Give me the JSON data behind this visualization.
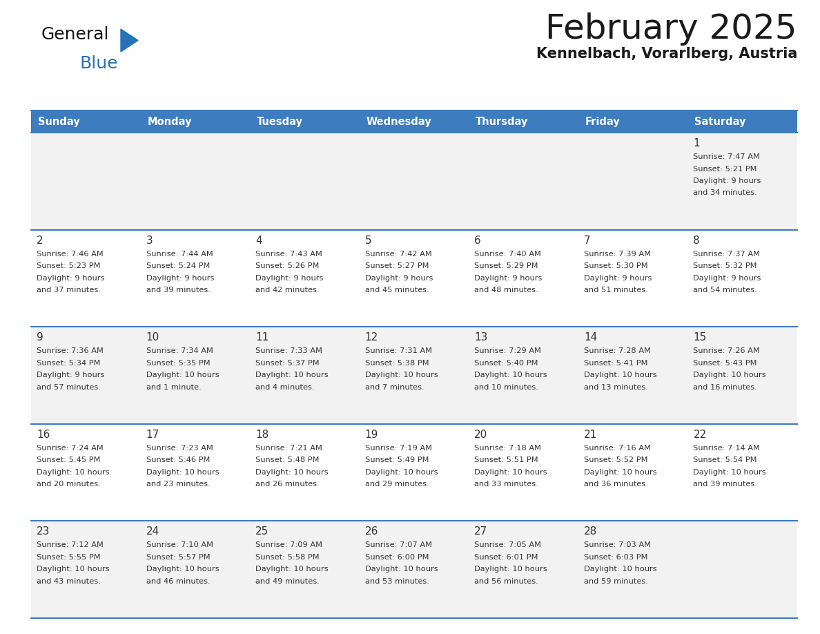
{
  "title": "February 2025",
  "subtitle": "Kennelbach, Vorarlberg, Austria",
  "days_of_week": [
    "Sunday",
    "Monday",
    "Tuesday",
    "Wednesday",
    "Thursday",
    "Friday",
    "Saturday"
  ],
  "header_bg": "#3d7cbf",
  "header_text": "#ffffff",
  "cell_bg_odd": "#f2f2f2",
  "cell_bg_even": "#ffffff",
  "border_color": "#3d7cbf",
  "text_color": "#333333",
  "line_color": "#3d7cbf",
  "calendar_data": [
    [
      null,
      null,
      null,
      null,
      null,
      null,
      {
        "day": "1",
        "sunrise": "7:47 AM",
        "sunset": "5:21 PM",
        "daylight": "9 hours",
        "daylight2": "and 34 minutes."
      }
    ],
    [
      {
        "day": "2",
        "sunrise": "7:46 AM",
        "sunset": "5:23 PM",
        "daylight": "9 hours",
        "daylight2": "and 37 minutes."
      },
      {
        "day": "3",
        "sunrise": "7:44 AM",
        "sunset": "5:24 PM",
        "daylight": "9 hours",
        "daylight2": "and 39 minutes."
      },
      {
        "day": "4",
        "sunrise": "7:43 AM",
        "sunset": "5:26 PM",
        "daylight": "9 hours",
        "daylight2": "and 42 minutes."
      },
      {
        "day": "5",
        "sunrise": "7:42 AM",
        "sunset": "5:27 PM",
        "daylight": "9 hours",
        "daylight2": "and 45 minutes."
      },
      {
        "day": "6",
        "sunrise": "7:40 AM",
        "sunset": "5:29 PM",
        "daylight": "9 hours",
        "daylight2": "and 48 minutes."
      },
      {
        "day": "7",
        "sunrise": "7:39 AM",
        "sunset": "5:30 PM",
        "daylight": "9 hours",
        "daylight2": "and 51 minutes."
      },
      {
        "day": "8",
        "sunrise": "7:37 AM",
        "sunset": "5:32 PM",
        "daylight": "9 hours",
        "daylight2": "and 54 minutes."
      }
    ],
    [
      {
        "day": "9",
        "sunrise": "7:36 AM",
        "sunset": "5:34 PM",
        "daylight": "9 hours",
        "daylight2": "and 57 minutes."
      },
      {
        "day": "10",
        "sunrise": "7:34 AM",
        "sunset": "5:35 PM",
        "daylight": "10 hours",
        "daylight2": "and 1 minute."
      },
      {
        "day": "11",
        "sunrise": "7:33 AM",
        "sunset": "5:37 PM",
        "daylight": "10 hours",
        "daylight2": "and 4 minutes."
      },
      {
        "day": "12",
        "sunrise": "7:31 AM",
        "sunset": "5:38 PM",
        "daylight": "10 hours",
        "daylight2": "and 7 minutes."
      },
      {
        "day": "13",
        "sunrise": "7:29 AM",
        "sunset": "5:40 PM",
        "daylight": "10 hours",
        "daylight2": "and 10 minutes."
      },
      {
        "day": "14",
        "sunrise": "7:28 AM",
        "sunset": "5:41 PM",
        "daylight": "10 hours",
        "daylight2": "and 13 minutes."
      },
      {
        "day": "15",
        "sunrise": "7:26 AM",
        "sunset": "5:43 PM",
        "daylight": "10 hours",
        "daylight2": "and 16 minutes."
      }
    ],
    [
      {
        "day": "16",
        "sunrise": "7:24 AM",
        "sunset": "5:45 PM",
        "daylight": "10 hours",
        "daylight2": "and 20 minutes."
      },
      {
        "day": "17",
        "sunrise": "7:23 AM",
        "sunset": "5:46 PM",
        "daylight": "10 hours",
        "daylight2": "and 23 minutes."
      },
      {
        "day": "18",
        "sunrise": "7:21 AM",
        "sunset": "5:48 PM",
        "daylight": "10 hours",
        "daylight2": "and 26 minutes."
      },
      {
        "day": "19",
        "sunrise": "7:19 AM",
        "sunset": "5:49 PM",
        "daylight": "10 hours",
        "daylight2": "and 29 minutes."
      },
      {
        "day": "20",
        "sunrise": "7:18 AM",
        "sunset": "5:51 PM",
        "daylight": "10 hours",
        "daylight2": "and 33 minutes."
      },
      {
        "day": "21",
        "sunrise": "7:16 AM",
        "sunset": "5:52 PM",
        "daylight": "10 hours",
        "daylight2": "and 36 minutes."
      },
      {
        "day": "22",
        "sunrise": "7:14 AM",
        "sunset": "5:54 PM",
        "daylight": "10 hours",
        "daylight2": "and 39 minutes."
      }
    ],
    [
      {
        "day": "23",
        "sunrise": "7:12 AM",
        "sunset": "5:55 PM",
        "daylight": "10 hours",
        "daylight2": "and 43 minutes."
      },
      {
        "day": "24",
        "sunrise": "7:10 AM",
        "sunset": "5:57 PM",
        "daylight": "10 hours",
        "daylight2": "and 46 minutes."
      },
      {
        "day": "25",
        "sunrise": "7:09 AM",
        "sunset": "5:58 PM",
        "daylight": "10 hours",
        "daylight2": "and 49 minutes."
      },
      {
        "day": "26",
        "sunrise": "7:07 AM",
        "sunset": "6:00 PM",
        "daylight": "10 hours",
        "daylight2": "and 53 minutes."
      },
      {
        "day": "27",
        "sunrise": "7:05 AM",
        "sunset": "6:01 PM",
        "daylight": "10 hours",
        "daylight2": "and 56 minutes."
      },
      {
        "day": "28",
        "sunrise": "7:03 AM",
        "sunset": "6:03 PM",
        "daylight": "10 hours",
        "daylight2": "and 59 minutes."
      },
      null
    ]
  ],
  "logo_color_general": "#111111",
  "logo_color_blue": "#2472b8",
  "logo_triangle_color": "#2472b8"
}
